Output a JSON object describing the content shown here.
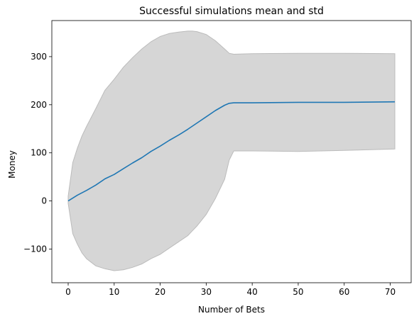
{
  "chart_data": {
    "type": "area",
    "title": "Successful simulations mean and std",
    "xlabel": "Number of Bets",
    "ylabel": "Money",
    "xlim": [
      -3.55,
      74.55
    ],
    "ylim": [
      -170,
      375
    ],
    "x_ticks": [
      0,
      10,
      20,
      30,
      40,
      50,
      60,
      70
    ],
    "y_ticks": [
      -100,
      0,
      100,
      200,
      300
    ],
    "grid": false,
    "legend": "none",
    "colors": {
      "mean_line": "#1f77b4",
      "std_band": "#d6d6d6",
      "band_edge": "#bbbbbb"
    },
    "series": [
      {
        "kind": "line",
        "x": [
          0,
          2,
          4,
          6,
          8,
          10,
          12,
          14,
          16,
          18,
          20,
          22,
          24,
          26,
          28,
          30,
          32,
          34,
          35,
          36,
          40,
          50,
          60,
          71
        ],
        "y": [
          0,
          12,
          22,
          33,
          46,
          55,
          67,
          79,
          90,
          103,
          114,
          126,
          137,
          149,
          162,
          175,
          188,
          199,
          203,
          204,
          204,
          205,
          205,
          206
        ]
      },
      {
        "kind": "band",
        "x": [
          0,
          1,
          2,
          3,
          4,
          6,
          8,
          10,
          12,
          14,
          16,
          18,
          20,
          22,
          24,
          26,
          27,
          28,
          30,
          32,
          34,
          35,
          36,
          40,
          50,
          60,
          71
        ],
        "upper": [
          10,
          80,
          110,
          135,
          155,
          192,
          230,
          253,
          278,
          298,
          316,
          331,
          342,
          348,
          351,
          353,
          353,
          352,
          346,
          333,
          316,
          307,
          305,
          306,
          307,
          307,
          306
        ],
        "lower": [
          -5,
          -68,
          -90,
          -108,
          -120,
          -135,
          -141,
          -145,
          -143,
          -138,
          -131,
          -120,
          -111,
          -98,
          -85,
          -72,
          -62,
          -52,
          -28,
          5,
          45,
          85,
          104,
          104,
          103,
          105,
          108
        ]
      }
    ]
  }
}
